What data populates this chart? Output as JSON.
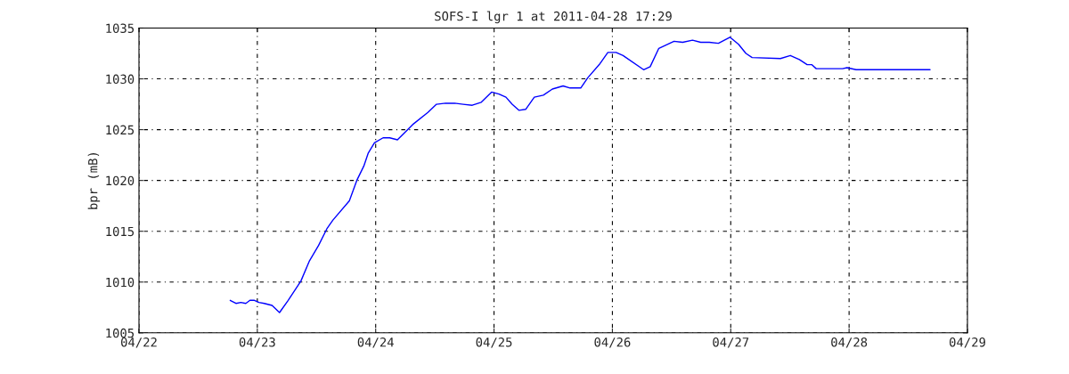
{
  "chart_data": {
    "type": "line",
    "title": "SOFS-I lgr 1 at 2011-04-28 17:29",
    "ylabel": "bpr (mB)",
    "x": [
      "2011-04-22T18:30",
      "2011-04-22T19:40",
      "2011-04-22T20:40",
      "2011-04-22T21:40",
      "2011-04-22T22:30",
      "2011-04-22T23:25",
      "2011-04-23T00:20",
      "2011-04-23T01:25",
      "2011-04-23T03:00",
      "2011-04-23T04:30",
      "2011-04-23T06:15",
      "2011-04-23T08:50",
      "2011-04-23T10:35",
      "2011-04-23T12:25",
      "2011-04-23T14:10",
      "2011-04-23T15:20",
      "2011-04-23T18:40",
      "2011-04-23T20:10",
      "2011-04-23T21:35",
      "2011-04-23T22:30",
      "2011-04-23T23:45",
      "2011-04-24T01:30",
      "2011-04-24T02:50",
      "2011-04-24T04:25",
      "2011-04-24T07:30",
      "2011-04-24T10:35",
      "2011-04-24T12:20",
      "2011-04-24T14:10",
      "2011-04-24T16:00",
      "2011-04-24T17:45",
      "2011-04-24T19:35",
      "2011-04-24T21:25",
      "2011-04-24T23:30",
      "2011-04-25T01:00",
      "2011-04-25T02:25",
      "2011-04-25T03:40",
      "2011-04-25T05:05",
      "2011-04-25T06:25",
      "2011-04-25T08:10",
      "2011-04-25T10:00",
      "2011-04-25T11:50",
      "2011-04-25T14:00",
      "2011-04-25T15:25",
      "2011-04-25T17:35",
      "2011-04-25T19:00",
      "2011-04-25T21:20",
      "2011-04-25T23:05",
      "2011-04-26T00:45",
      "2011-04-26T02:10",
      "2011-04-26T06:20",
      "2011-04-26T07:40",
      "2011-04-26T09:25",
      "2011-04-26T12:30",
      "2011-04-26T14:15",
      "2011-04-26T16:15",
      "2011-04-26T17:55",
      "2011-04-26T19:40",
      "2011-04-26T21:30",
      "2011-04-26T23:50",
      "2011-04-27T01:35",
      "2011-04-27T03:05",
      "2011-04-27T04:20",
      "2011-04-27T10:05",
      "2011-04-27T12:05",
      "2011-04-27T13:55",
      "2011-04-27T15:30",
      "2011-04-27T16:25",
      "2011-04-27T17:20",
      "2011-04-27T22:40",
      "2011-04-27T23:35",
      "2011-04-28T01:25",
      "2011-04-28T16:25"
    ],
    "series": [
      {
        "color": "#0000ff",
        "values": [
          1008.2,
          1007.9,
          1008.0,
          1007.9,
          1008.2,
          1008.2,
          1008.0,
          1007.9,
          1007.7,
          1007.0,
          1008.2,
          1010.1,
          1012.1,
          1013.6,
          1015.3,
          1016.1,
          1018.0,
          1020.0,
          1021.4,
          1022.7,
          1023.7,
          1024.2,
          1024.2,
          1024.0,
          1025.5,
          1026.7,
          1027.5,
          1027.6,
          1027.6,
          1027.5,
          1027.4,
          1027.7,
          1028.7,
          1028.5,
          1028.2,
          1027.5,
          1026.9,
          1027.0,
          1028.2,
          1028.4,
          1029.0,
          1029.3,
          1029.1,
          1029.1,
          1030.1,
          1031.4,
          1032.6,
          1032.6,
          1032.3,
          1030.9,
          1031.2,
          1033.0,
          1033.7,
          1033.6,
          1033.8,
          1033.6,
          1033.6,
          1033.5,
          1034.1,
          1033.4,
          1032.5,
          1032.1,
          1032.0,
          1032.3,
          1031.9,
          1031.4,
          1031.4,
          1031.0,
          1031.0,
          1031.1,
          1030.9,
          1030.9
        ]
      }
    ],
    "xlim": [
      "2011-04-22",
      "2011-04-29"
    ],
    "xticks": [
      {
        "value": "2011-04-22",
        "label": "04/22"
      },
      {
        "value": "2011-04-23",
        "label": "04/23"
      },
      {
        "value": "2011-04-24",
        "label": "04/24"
      },
      {
        "value": "2011-04-25",
        "label": "04/25"
      },
      {
        "value": "2011-04-26",
        "label": "04/26"
      },
      {
        "value": "2011-04-27",
        "label": "04/27"
      },
      {
        "value": "2011-04-28",
        "label": "04/28"
      },
      {
        "value": "2011-04-29",
        "label": "04/29"
      }
    ],
    "ylim": [
      1005,
      1035
    ],
    "yticks": [
      1005,
      1010,
      1015,
      1020,
      1025,
      1030,
      1035
    ],
    "grid": true,
    "line_style": "solid",
    "marker": "none"
  }
}
